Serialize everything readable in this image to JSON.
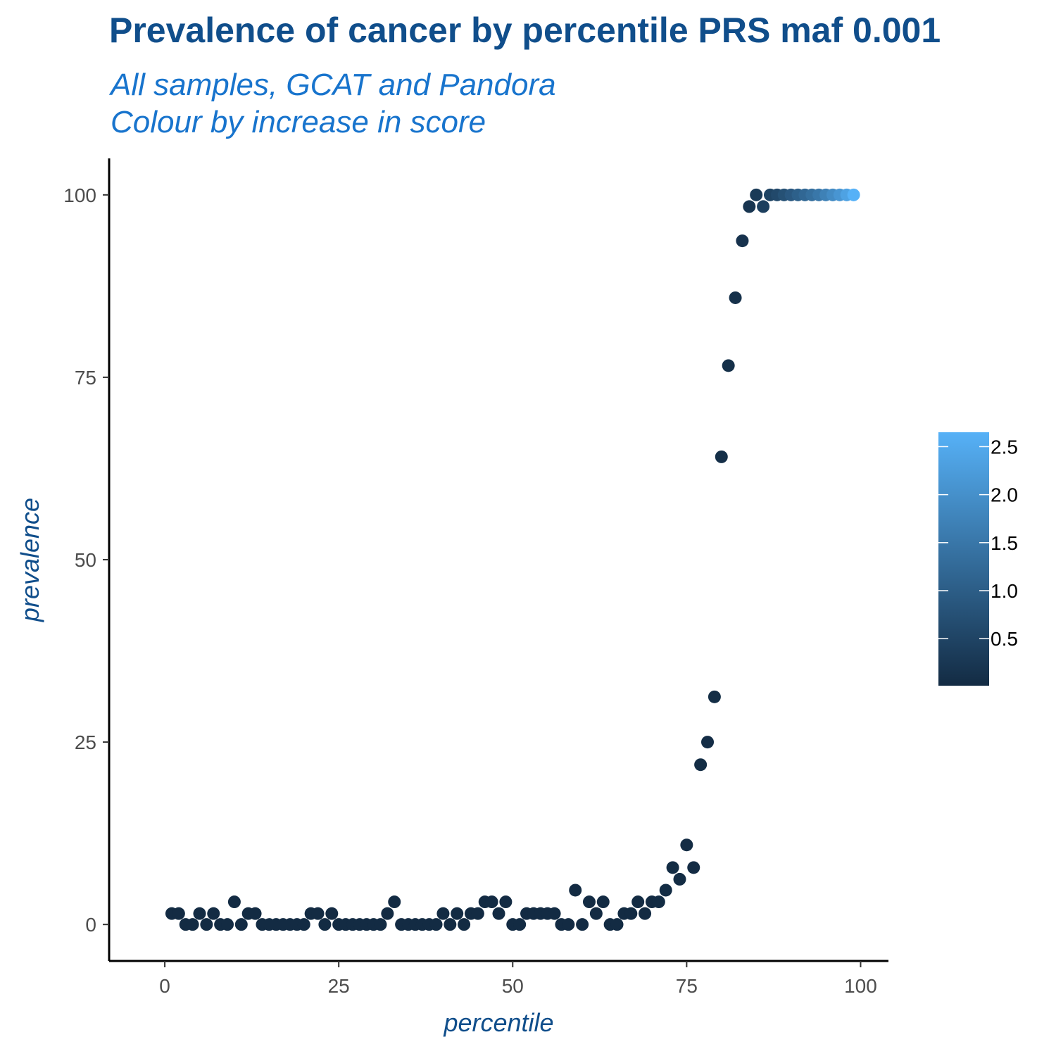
{
  "title": "Prevalence of cancer by percentile PRS maf 0.001",
  "subtitle_lines": [
    "All samples, GCAT and Pandora",
    "Colour by increase in score"
  ],
  "chart_data": {
    "type": "scatter",
    "xlabel": "percentile",
    "ylabel": "prevalence",
    "xlim": [
      -8,
      104
    ],
    "ylim": [
      -5,
      105
    ],
    "x_ticks": [
      0,
      25,
      50,
      75,
      100
    ],
    "y_ticks": [
      0,
      25,
      50,
      75,
      100
    ],
    "grid": false,
    "colorbar": {
      "placement": "right",
      "range": [
        0.01,
        2.65
      ],
      "ticks": [
        0.5,
        1.0,
        1.5,
        2.0,
        2.5
      ],
      "tick_labels": [
        "0.5",
        "1.0",
        "1.5",
        "2.0",
        "2.5"
      ],
      "low_color": "#132B43",
      "high_color": "#56B1F7"
    },
    "x": [
      1,
      2,
      3,
      4,
      5,
      6,
      7,
      8,
      9,
      10,
      11,
      12,
      13,
      14,
      15,
      16,
      17,
      18,
      19,
      20,
      21,
      22,
      23,
      24,
      25,
      26,
      27,
      28,
      29,
      30,
      31,
      32,
      33,
      34,
      35,
      36,
      37,
      38,
      39,
      40,
      41,
      42,
      43,
      44,
      45,
      46,
      47,
      48,
      49,
      50,
      51,
      52,
      53,
      54,
      55,
      56,
      57,
      58,
      59,
      60,
      61,
      62,
      63,
      64,
      65,
      66,
      67,
      68,
      69,
      70,
      71,
      72,
      73,
      74,
      75,
      76,
      77,
      78,
      79,
      80,
      81,
      82,
      83,
      84,
      85,
      86,
      87,
      88,
      89,
      90,
      91,
      92,
      93,
      94,
      95,
      96,
      97,
      98,
      99
    ],
    "y": [
      1.5,
      1.5,
      0,
      0,
      1.5,
      0,
      1.5,
      0,
      0,
      3.1,
      0,
      1.5,
      1.5,
      0,
      0,
      0,
      0,
      0,
      0,
      0,
      1.5,
      1.5,
      0,
      1.5,
      0,
      0,
      0,
      0,
      0,
      0,
      0,
      1.5,
      3.1,
      0,
      0,
      0,
      0,
      0,
      0,
      1.5,
      0,
      1.5,
      0,
      1.5,
      1.5,
      3.1,
      3.1,
      1.5,
      3.1,
      0,
      0,
      1.5,
      1.5,
      1.5,
      1.5,
      1.5,
      0,
      0,
      4.7,
      0,
      3.1,
      1.5,
      3.1,
      0,
      0,
      1.5,
      1.5,
      3.1,
      1.5,
      3.1,
      3.1,
      4.7,
      7.8,
      6.2,
      10.9,
      7.8,
      21.9,
      25,
      31.2,
      64.1,
      76.6,
      85.9,
      93.7,
      98.4,
      100,
      98.4,
      100,
      100,
      100,
      100,
      100,
      100,
      100,
      100,
      100,
      100,
      100,
      100,
      100
    ],
    "color_values": [
      0.01,
      0.01,
      0.01,
      0.01,
      0.01,
      0.01,
      0.01,
      0.01,
      0.01,
      0.01,
      0.01,
      0.01,
      0.01,
      0.01,
      0.01,
      0.01,
      0.01,
      0.01,
      0.01,
      0.01,
      0.01,
      0.01,
      0.01,
      0.01,
      0.01,
      0.01,
      0.01,
      0.01,
      0.01,
      0.01,
      0.01,
      0.01,
      0.01,
      0.01,
      0.01,
      0.01,
      0.01,
      0.01,
      0.01,
      0.01,
      0.01,
      0.01,
      0.01,
      0.01,
      0.01,
      0.01,
      0.01,
      0.01,
      0.01,
      0.01,
      0.01,
      0.01,
      0.01,
      0.01,
      0.01,
      0.01,
      0.01,
      0.01,
      0.01,
      0.01,
      0.01,
      0.01,
      0.01,
      0.01,
      0.01,
      0.01,
      0.01,
      0.01,
      0.01,
      0.01,
      0.02,
      0.02,
      0.02,
      0.02,
      0.03,
      0.03,
      0.04,
      0.05,
      0.06,
      0.08,
      0.1,
      0.12,
      0.15,
      0.2,
      0.3,
      0.4,
      0.5,
      0.6,
      0.75,
      0.9,
      1.05,
      1.2,
      1.35,
      1.5,
      1.7,
      1.9,
      2.1,
      2.35,
      2.65
    ]
  }
}
